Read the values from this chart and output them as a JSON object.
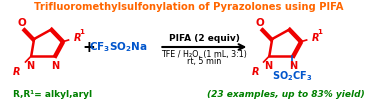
{
  "title": "Trifluoromethylsulfonylation of Pyrazolones using PIFA",
  "title_color": "#FF6600",
  "title_fontsize": 7.2,
  "arrow_text_top": "PIFA (2 equiv)",
  "arrow_text_bottom1": "TFE / H₂O, (1 mL, 3:1)",
  "arrow_text_bottom2": "rt, 5 min",
  "footnote": "R,R¹= alkyl,aryl",
  "footnote_color": "#008000",
  "yield_text": "(23 examples, up to 83% yield)",
  "yield_color": "#008000",
  "bg_color": "#FFFFFF",
  "red_color": "#EE0000",
  "black_color": "#000000",
  "blue_color": "#0055CC",
  "green_color": "#008800"
}
